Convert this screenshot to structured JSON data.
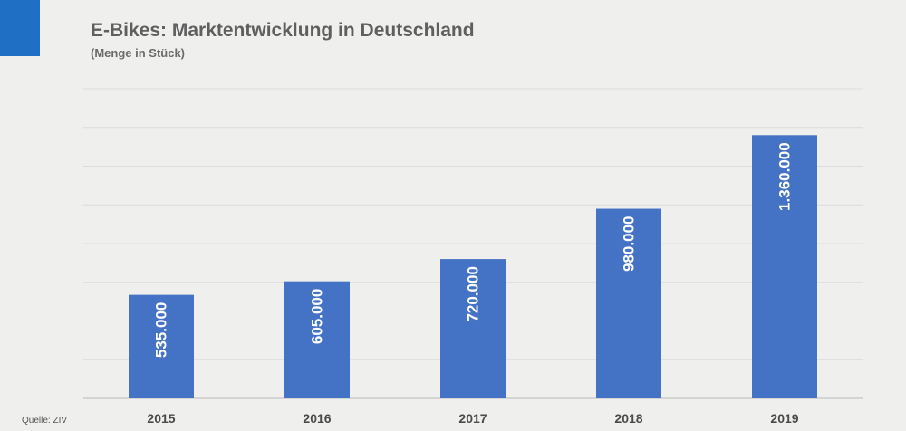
{
  "colors": {
    "accent": "#1f6fc4",
    "bar": "#4472c4",
    "grid": "#dcdcdc",
    "axis": "#b9b9b9"
  },
  "header": {
    "title": "E-Bikes: Marktentwicklung in Deutschland",
    "subtitle": "(Menge in Stück)"
  },
  "footer": {
    "source": "Quelle: ZIV"
  },
  "chart_data": {
    "type": "bar",
    "title": "E-Bikes: Marktentwicklung in Deutschland",
    "subtitle": "(Menge in Stück)",
    "categories": [
      "2015",
      "2016",
      "2017",
      "2018",
      "2019"
    ],
    "values": [
      535000,
      605000,
      720000,
      980000,
      1360000
    ],
    "data_labels": [
      "535.000",
      "605.000",
      "720.000",
      "980.000",
      "1.360.000"
    ],
    "ylim": [
      0,
      1600000
    ],
    "grid": true,
    "source": "Quelle: ZIV"
  }
}
